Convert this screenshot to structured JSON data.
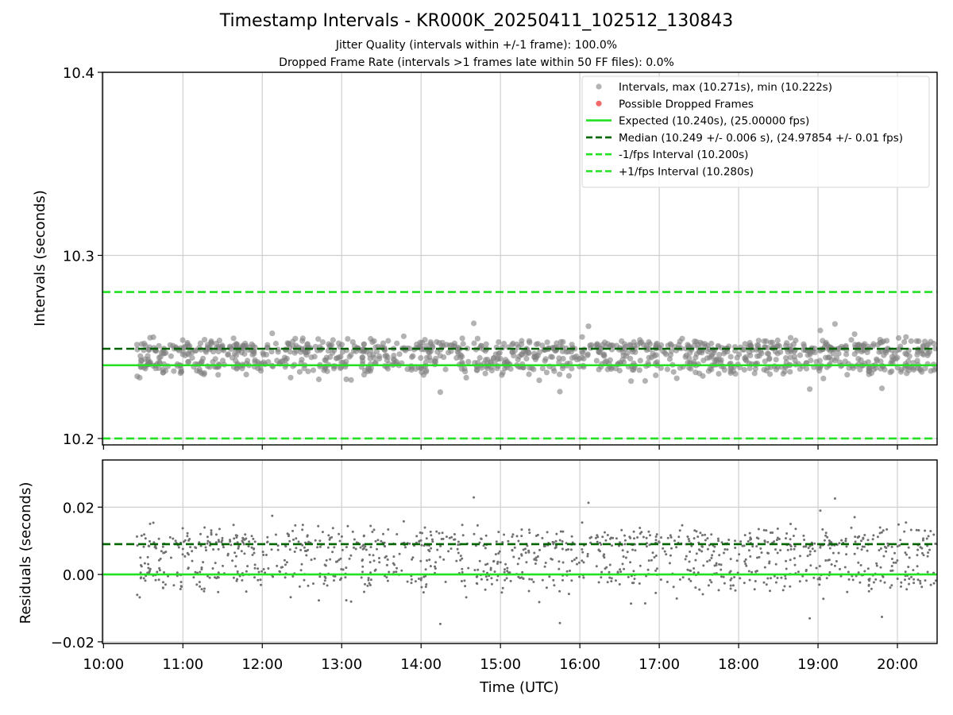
{
  "header": {
    "title": "Timestamp Intervals - KR000K_20250411_102512_130843",
    "subtitle_1": "Jitter Quality (intervals within +/-1 frame): 100.0%",
    "subtitle_2": "Dropped Frame Rate (intervals >1 frames late within 50 FF files): 0.0%"
  },
  "chart_data": [
    {
      "type": "scatter",
      "panel": "top",
      "ylabel": "Intervals (seconds)",
      "ylim": [
        10.2,
        10.4
      ],
      "yticks": [
        "10.2",
        "10.3",
        "10.4"
      ],
      "xlim": [
        "10:00",
        "20:30"
      ],
      "grid": true,
      "legend_position": "top-right",
      "series": [
        {
          "name": "Intervals, max (10.271s), min (10.222s)",
          "kind": "scatter",
          "color": "#808080",
          "start": "10:25",
          "end": "20:30",
          "count": 1200,
          "max": 10.271,
          "min": 10.222,
          "centers": [
            10.24,
            10.249
          ]
        },
        {
          "name": "Possible Dropped Frames",
          "kind": "scatter",
          "color": "#f05a5a",
          "values": []
        }
      ],
      "lines": [
        {
          "name": "Expected (10.240s), (25.00000 fps)",
          "value": 10.24,
          "color": "#22e022",
          "style": "solid"
        },
        {
          "name": "Median (10.249 +/- 0.006 s), (24.97854 +/- 0.01 fps)",
          "value": 10.249,
          "color": "#006400",
          "style": "dashed"
        },
        {
          "name": "-1/fps Interval (10.200s)",
          "value": 10.2,
          "color": "#22e022",
          "style": "dashed"
        },
        {
          "name": "+1/fps Interval (10.280s)",
          "value": 10.28,
          "color": "#22e022",
          "style": "dashed"
        }
      ]
    },
    {
      "type": "scatter",
      "panel": "bottom",
      "ylabel": "Residuals (seconds)",
      "xlabel": "Time (UTC)",
      "ylim": [
        -0.0205,
        0.034
      ],
      "yticks": [
        "−0.02",
        "0.00",
        "0.02"
      ],
      "xticks": [
        "10:00",
        "11:00",
        "12:00",
        "13:00",
        "14:00",
        "15:00",
        "16:00",
        "17:00",
        "18:00",
        "19:00",
        "20:00"
      ],
      "xlim": [
        "10:00",
        "20:30"
      ],
      "grid": true,
      "series": [
        {
          "name": "",
          "kind": "scatter",
          "color": "#707070",
          "start": "10:25",
          "end": "20:30",
          "count": 1200
        }
      ],
      "lines": [
        {
          "value": 0.0,
          "color": "#22e022",
          "style": "solid"
        },
        {
          "value": 0.009,
          "color": "#006400",
          "style": "dashed"
        }
      ]
    }
  ]
}
